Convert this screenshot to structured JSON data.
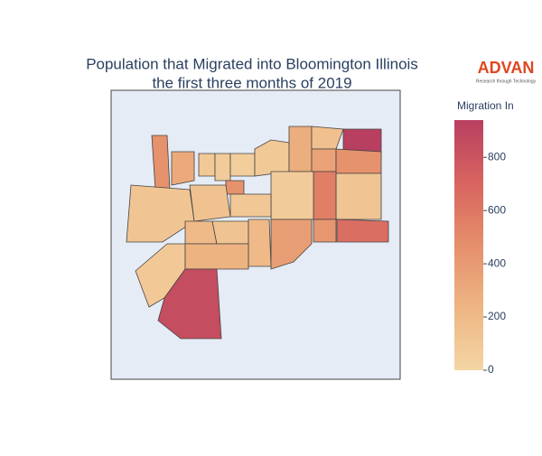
{
  "chart_data": {
    "type": "choropleth",
    "title": [
      "Population that Migrated into Bloomington Illinois",
      "the first three months of 2019"
    ],
    "logo": {
      "text": "ADVAN",
      "tagline": "Research through Technology"
    },
    "values": [
      450,
      120,
      300,
      100,
      80,
      60,
      90,
      280,
      150,
      940,
      350,
      450,
      120,
      560,
      80,
      450,
      140,
      110,
      100,
      200,
      130,
      200,
      250,
      380,
      420,
      650,
      850
    ],
    "colorscale": [
      "#f3d6a4",
      "#eeb583",
      "#e58f6b",
      "#d8645f",
      "#b83f60"
    ],
    "colorbar": {
      "title": "Migration In",
      "range": [
        0,
        940
      ],
      "ticks": [
        0,
        200,
        400,
        600,
        800
      ]
    }
  }
}
